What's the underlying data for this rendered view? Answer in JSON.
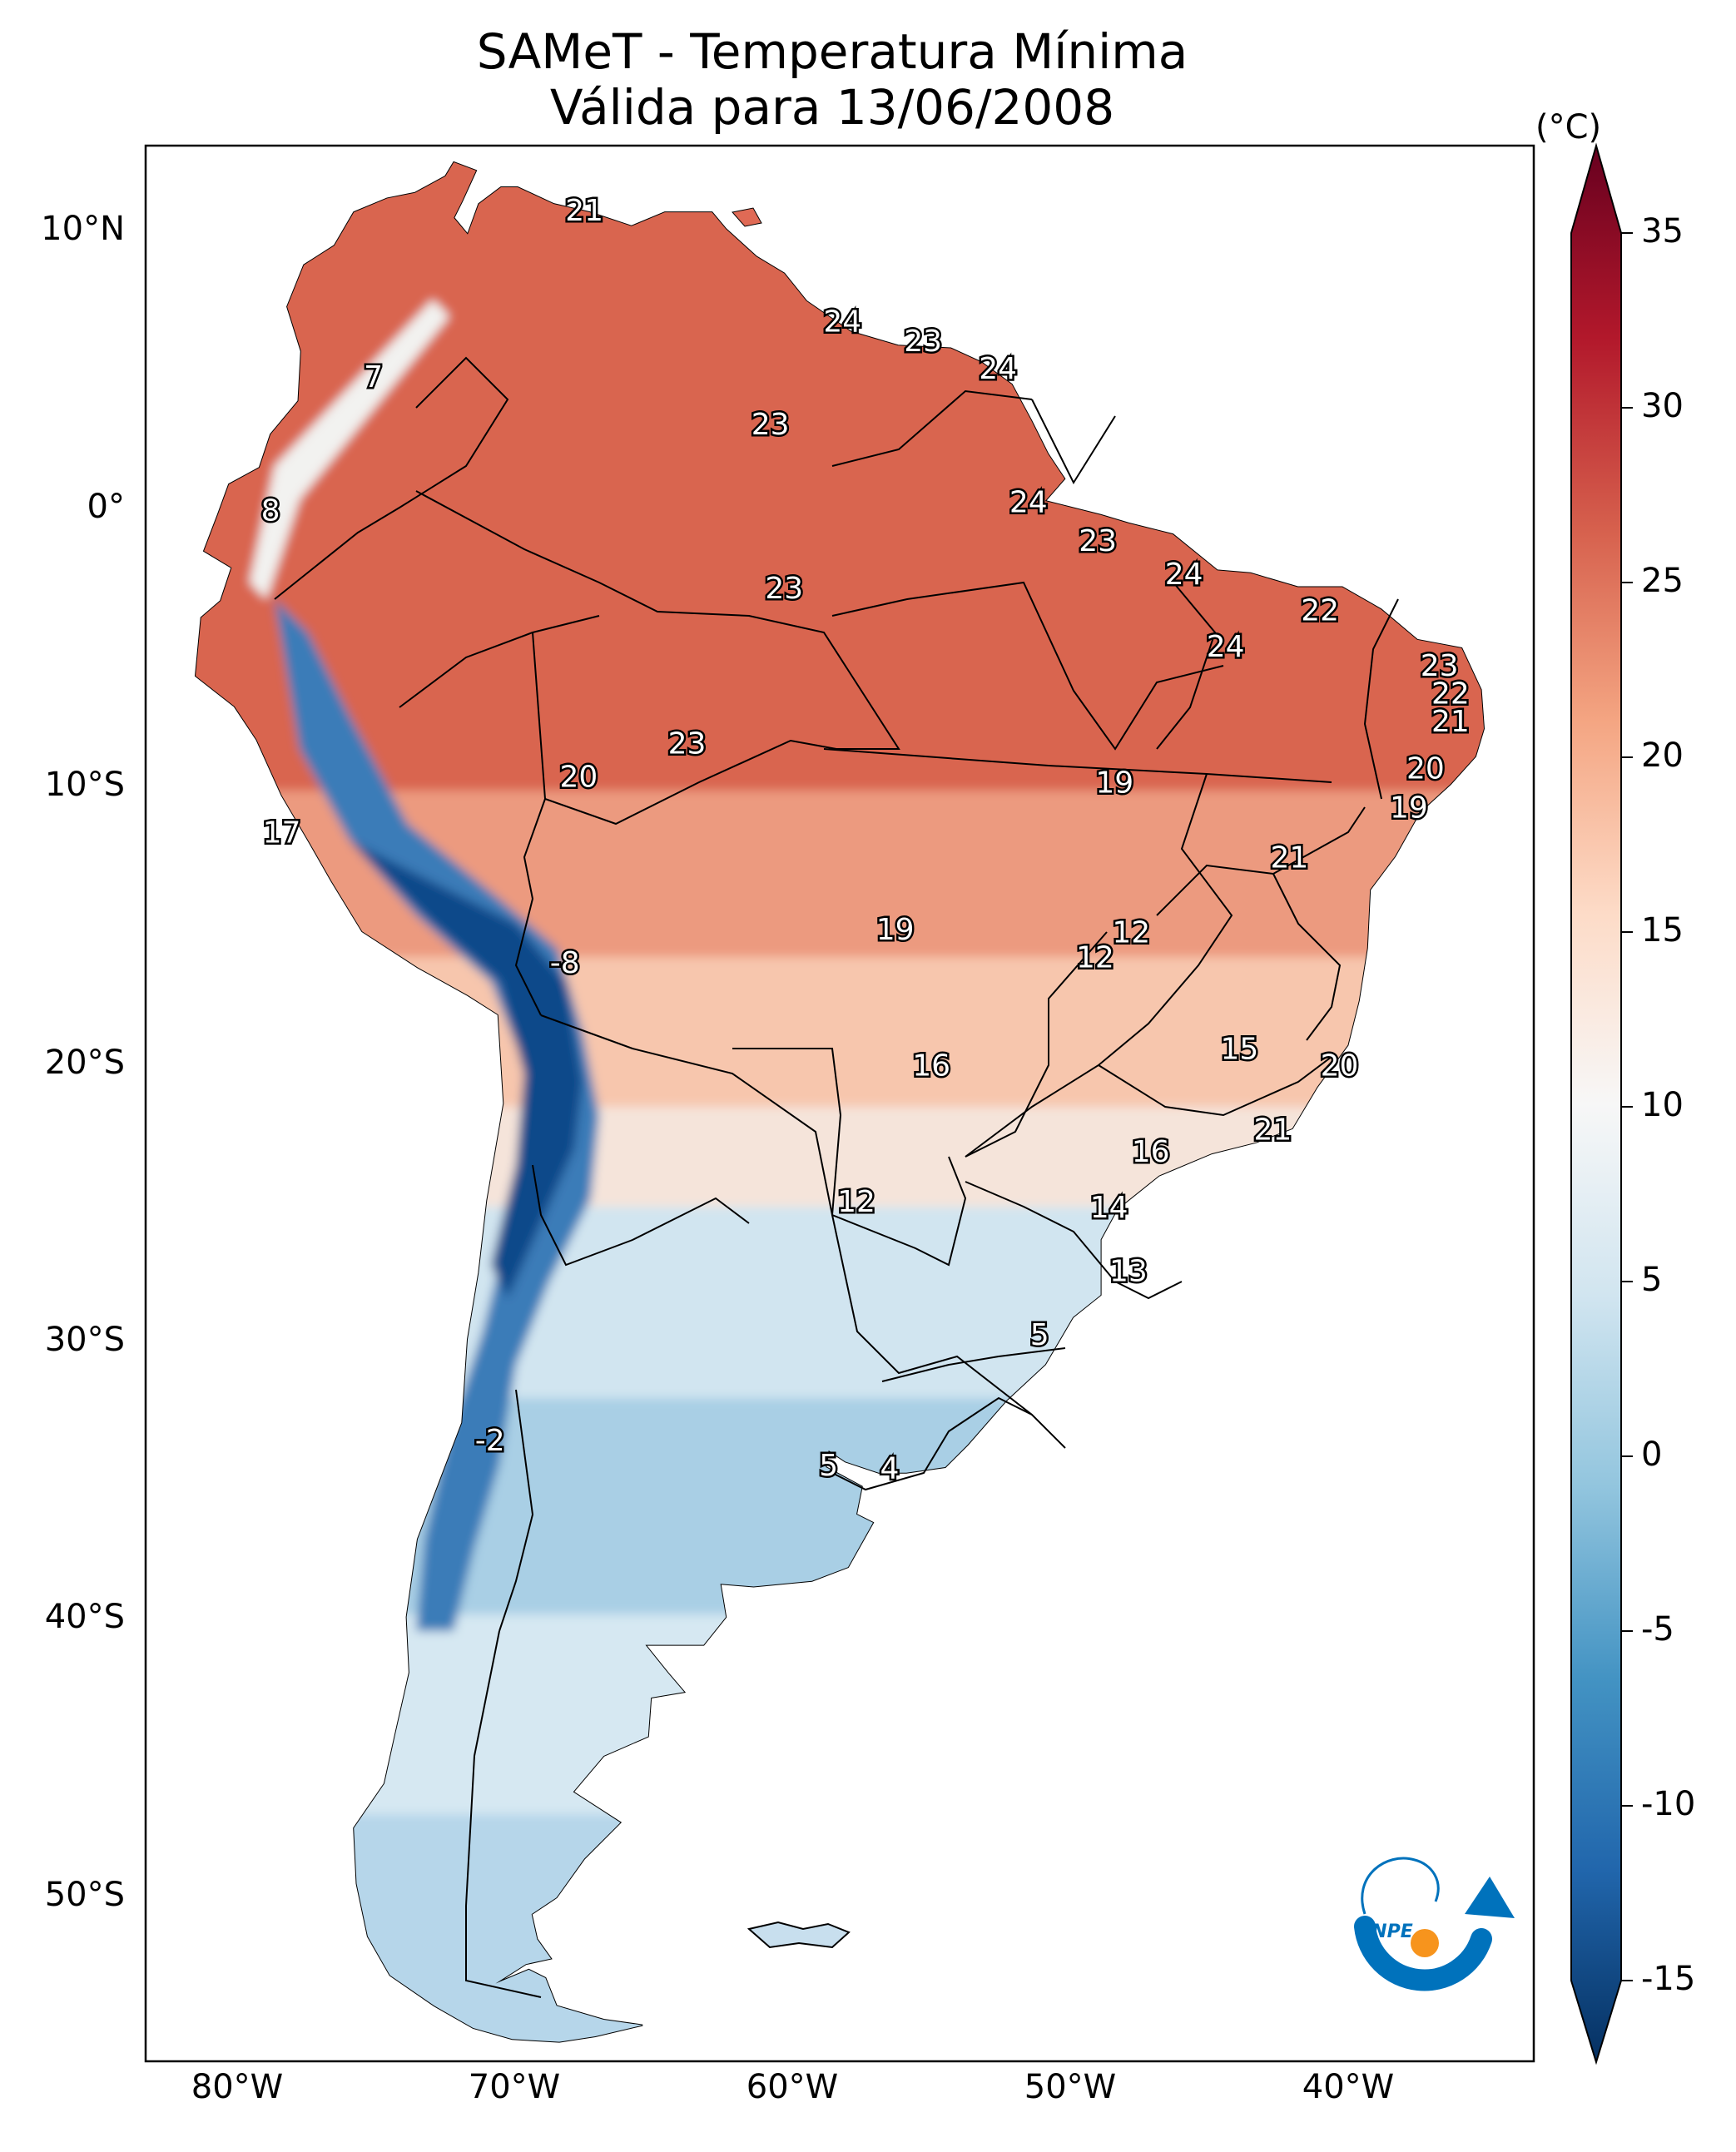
{
  "title": {
    "line1": "SAMeT - Temperatura Mínima",
    "line2": "Válida para 13/06/2008"
  },
  "axes": {
    "lon_ticks": [
      "80°W",
      "70°W",
      "60°W",
      "50°W",
      "40°W"
    ],
    "lat_ticks": [
      "10°N",
      "0°",
      "10°S",
      "20°S",
      "30°S",
      "40°S",
      "50°S"
    ]
  },
  "colorbar": {
    "unit": "(°C)",
    "min": -15,
    "max": 35,
    "ticks": [
      "35",
      "30",
      "25",
      "20",
      "15",
      "10",
      "5",
      "0",
      "-5",
      "-10",
      "-15"
    ],
    "colors": [
      "#67001f",
      "#b2182b",
      "#d6604d",
      "#f4a582",
      "#fddbc7",
      "#f7f7f7",
      "#d1e5f0",
      "#92c5de",
      "#4393c3",
      "#2166ac",
      "#053061"
    ]
  },
  "logo": {
    "text": "INPE",
    "colors": [
      "#0072bc",
      "#f7941d"
    ]
  },
  "chart_data": {
    "type": "heatmap",
    "variable": "Temperatura Mínima",
    "units": "°C",
    "date": "13/06/2008",
    "extent": {
      "lon": [
        -83,
        -33
      ],
      "lat": [
        -56,
        13
      ]
    },
    "labels": [
      {
        "value": "21",
        "lon": -67.2,
        "lat": 10.6
      },
      {
        "value": "7",
        "lon": -74.8,
        "lat": 4.6
      },
      {
        "value": "24",
        "lon": -57.9,
        "lat": 6.6
      },
      {
        "value": "23",
        "lon": -55.0,
        "lat": 5.9
      },
      {
        "value": "24",
        "lon": -52.3,
        "lat": 4.9
      },
      {
        "value": "23",
        "lon": -60.5,
        "lat": 2.9
      },
      {
        "value": "8",
        "lon": -78.5,
        "lat": -0.2
      },
      {
        "value": "24",
        "lon": -51.2,
        "lat": 0.1
      },
      {
        "value": "23",
        "lon": -48.7,
        "lat": -1.3
      },
      {
        "value": "24",
        "lon": -45.6,
        "lat": -2.5
      },
      {
        "value": "23",
        "lon": -60.0,
        "lat": -3.0
      },
      {
        "value": "22",
        "lon": -40.7,
        "lat": -3.8
      },
      {
        "value": "24",
        "lon": -44.1,
        "lat": -5.1
      },
      {
        "value": "23",
        "lon": -36.4,
        "lat": -5.8
      },
      {
        "value": "22",
        "lon": -36.0,
        "lat": -6.8
      },
      {
        "value": "21",
        "lon": -36.0,
        "lat": -7.8
      },
      {
        "value": "23",
        "lon": -63.5,
        "lat": -8.6
      },
      {
        "value": "20",
        "lon": -67.4,
        "lat": -9.8
      },
      {
        "value": "20",
        "lon": -36.9,
        "lat": -9.5
      },
      {
        "value": "19",
        "lon": -48.1,
        "lat": -10.0
      },
      {
        "value": "19",
        "lon": -37.5,
        "lat": -10.9
      },
      {
        "value": "17",
        "lon": -78.1,
        "lat": -11.8
      },
      {
        "value": "21",
        "lon": -41.8,
        "lat": -12.7
      },
      {
        "value": "19",
        "lon": -56.0,
        "lat": -15.3
      },
      {
        "value": "12",
        "lon": -47.5,
        "lat": -15.4
      },
      {
        "value": "12",
        "lon": -48.8,
        "lat": -16.3
      },
      {
        "value": "-8",
        "lon": -67.9,
        "lat": -16.5
      },
      {
        "value": "15",
        "lon": -43.6,
        "lat": -19.6
      },
      {
        "value": "20",
        "lon": -40.0,
        "lat": -20.2
      },
      {
        "value": "16",
        "lon": -54.7,
        "lat": -20.2
      },
      {
        "value": "21",
        "lon": -42.4,
        "lat": -22.5
      },
      {
        "value": "16",
        "lon": -46.8,
        "lat": -23.3
      },
      {
        "value": "12",
        "lon": -57.4,
        "lat": -25.1
      },
      {
        "value": "14",
        "lon": -48.3,
        "lat": -25.3
      },
      {
        "value": "13",
        "lon": -47.6,
        "lat": -27.6
      },
      {
        "value": "5",
        "lon": -50.8,
        "lat": -29.9
      },
      {
        "value": "-2",
        "lon": -70.6,
        "lat": -33.7
      },
      {
        "value": "5",
        "lon": -58.4,
        "lat": -34.6
      },
      {
        "value": "4",
        "lon": -56.2,
        "lat": -34.7
      }
    ]
  }
}
